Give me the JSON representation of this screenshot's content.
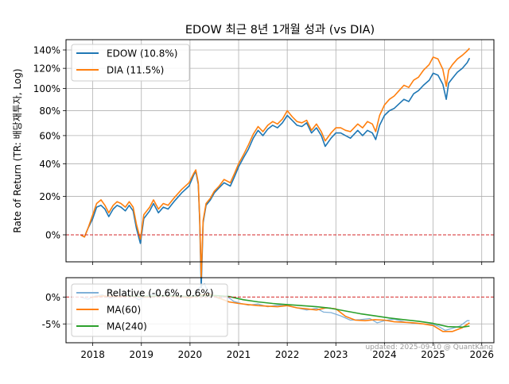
{
  "chart_data": [
    {
      "type": "line",
      "title": "EDOW 최근 8년 1개월 성과 (vs DIA)",
      "ylabel": "Rate of Return (TR: 배당재투자, Log)",
      "y_scale": "log(1+r)",
      "ylim": [
        -12,
        152
      ],
      "xlim": [
        2017.45,
        2026.25
      ],
      "grid": true,
      "legend_position": "top-left",
      "ytick_labels": [
        "0%",
        "20%",
        "40%",
        "60%",
        "80%",
        "100%",
        "120%",
        "140%"
      ],
      "ytick_values": [
        0,
        20,
        40,
        60,
        80,
        100,
        120,
        140
      ],
      "reference_line": {
        "y": 0,
        "color": "#d62728",
        "style": "dashed"
      },
      "series": [
        {
          "name": "EDOW (10.8%)",
          "color": "#1f77b4",
          "x": [
            2017.75,
            2017.83,
            2017.9,
            2018.0,
            2018.08,
            2018.17,
            2018.25,
            2018.33,
            2018.42,
            2018.5,
            2018.58,
            2018.67,
            2018.75,
            2018.83,
            2018.9,
            2018.98,
            2019.05,
            2019.17,
            2019.25,
            2019.35,
            2019.45,
            2019.55,
            2019.67,
            2019.83,
            2019.98,
            2020.08,
            2020.12,
            2020.17,
            2020.2,
            2020.23,
            2020.27,
            2020.33,
            2020.42,
            2020.5,
            2020.6,
            2020.7,
            2020.83,
            2020.92,
            2021.0,
            2021.1,
            2021.2,
            2021.3,
            2021.4,
            2021.5,
            2021.6,
            2021.7,
            2021.8,
            2021.9,
            2022.0,
            2022.1,
            2022.2,
            2022.3,
            2022.4,
            2022.5,
            2022.6,
            2022.7,
            2022.78,
            2022.9,
            2023.0,
            2023.1,
            2023.2,
            2023.3,
            2023.45,
            2023.55,
            2023.65,
            2023.75,
            2023.82,
            2023.9,
            2024.0,
            2024.1,
            2024.2,
            2024.3,
            2024.4,
            2024.5,
            2024.6,
            2024.7,
            2024.8,
            2024.92,
            2025.0,
            2025.1,
            2025.2,
            2025.27,
            2025.32,
            2025.4,
            2025.5,
            2025.6,
            2025.7,
            2025.75
          ],
          "values": [
            0.0,
            -1.0,
            3.0,
            8.0,
            14.0,
            15.0,
            13.0,
            9.0,
            13.0,
            15.0,
            14.0,
            12.0,
            15.0,
            12.0,
            3.0,
            -4.0,
            8.0,
            12.0,
            16.0,
            11.0,
            14.0,
            13.0,
            17.0,
            22.0,
            26.0,
            33.0,
            35.0,
            27.0,
            7.0,
            -22.0,
            6.0,
            15.0,
            18.0,
            22.0,
            25.0,
            28.0,
            26.0,
            32.0,
            38.0,
            44.0,
            50.0,
            58.0,
            64.0,
            60.0,
            65.0,
            68.0,
            66.0,
            70.0,
            76.0,
            72.0,
            68.0,
            67.0,
            70.0,
            62.0,
            66.0,
            60.0,
            52.0,
            58.0,
            62.0,
            62.0,
            60.0,
            58.0,
            64.0,
            60.0,
            64.0,
            62.0,
            57.0,
            68.0,
            76.0,
            80.0,
            82.0,
            86.0,
            90.0,
            88.0,
            95.0,
            98.0,
            103.0,
            108.0,
            115.0,
            113.0,
            104.0,
            90.0,
            105.0,
            110.0,
            116.0,
            120.0,
            126.0,
            131.0
          ]
        },
        {
          "name": "DIA (11.5%)",
          "color": "#ff7f0e",
          "x": [
            2017.75,
            2017.83,
            2017.9,
            2018.0,
            2018.08,
            2018.17,
            2018.25,
            2018.33,
            2018.42,
            2018.5,
            2018.58,
            2018.67,
            2018.75,
            2018.83,
            2018.9,
            2018.98,
            2019.05,
            2019.17,
            2019.25,
            2019.35,
            2019.45,
            2019.55,
            2019.67,
            2019.83,
            2019.98,
            2020.08,
            2020.12,
            2020.17,
            2020.2,
            2020.23,
            2020.27,
            2020.33,
            2020.42,
            2020.5,
            2020.6,
            2020.7,
            2020.83,
            2020.92,
            2021.0,
            2021.1,
            2021.2,
            2021.3,
            2021.4,
            2021.5,
            2021.6,
            2021.7,
            2021.8,
            2021.9,
            2022.0,
            2022.1,
            2022.2,
            2022.3,
            2022.4,
            2022.5,
            2022.6,
            2022.7,
            2022.78,
            2022.9,
            2023.0,
            2023.1,
            2023.2,
            2023.3,
            2023.45,
            2023.55,
            2023.65,
            2023.75,
            2023.82,
            2023.9,
            2024.0,
            2024.1,
            2024.2,
            2024.3,
            2024.4,
            2024.5,
            2024.6,
            2024.7,
            2024.8,
            2024.92,
            2025.0,
            2025.1,
            2025.2,
            2025.27,
            2025.32,
            2025.4,
            2025.5,
            2025.6,
            2025.7,
            2025.75
          ],
          "values": [
            0.0,
            -1.0,
            3.0,
            10.0,
            16.0,
            18.0,
            15.0,
            11.0,
            15.0,
            17.0,
            16.0,
            14.0,
            17.0,
            14.0,
            5.0,
            -2.0,
            10.0,
            14.0,
            18.0,
            13.0,
            16.0,
            15.0,
            19.0,
            24.0,
            28.0,
            34.0,
            36.0,
            28.0,
            8.0,
            -18.0,
            7.0,
            16.0,
            19.0,
            23.0,
            26.0,
            30.0,
            28.0,
            34.0,
            40.0,
            46.0,
            53.0,
            61.0,
            67.0,
            63.0,
            68.0,
            71.0,
            69.0,
            73.0,
            80.0,
            75.0,
            71.0,
            70.0,
            72.0,
            64.0,
            69.0,
            63.0,
            56.0,
            62.0,
            66.0,
            66.0,
            64.0,
            63.0,
            69.0,
            66.0,
            71.0,
            69.0,
            63.0,
            76.0,
            85.0,
            90.0,
            93.0,
            98.0,
            103.0,
            101.0,
            108.0,
            111.0,
            118.0,
            124.0,
            132.0,
            130.0,
            119.0,
            102.0,
            118.0,
            124.0,
            130.0,
            134.0,
            139.0,
            142.0
          ]
        }
      ]
    },
    {
      "type": "line",
      "ylim": [
        -8.5,
        3.6
      ],
      "xlim": [
        2017.45,
        2026.25
      ],
      "grid": true,
      "legend_position": "top-left",
      "ytick_labels": [
        "0%",
        "-5%"
      ],
      "ytick_values": [
        0,
        -5
      ],
      "xtick_labels": [
        "2018",
        "2019",
        "2020",
        "2021",
        "2022",
        "2023",
        "2024",
        "2025",
        "2026"
      ],
      "xtick_values": [
        2018,
        2019,
        2020,
        2021,
        2022,
        2023,
        2024,
        2025,
        2026
      ],
      "reference_line": {
        "y": 0,
        "color": "#d62728",
        "style": "dashed"
      },
      "series": [
        {
          "name": "Relative (-0.6%, 0.6%)",
          "color": "#7fb0d8",
          "x": [
            2017.75,
            2017.9,
            2018.05,
            2018.2,
            2018.35,
            2018.5,
            2018.65,
            2018.8,
            2018.95,
            2019.1,
            2019.25,
            2019.4,
            2019.55,
            2019.7,
            2019.85,
            2020.0,
            2020.1,
            2020.2,
            2020.3,
            2020.35,
            2020.45,
            2020.6,
            2020.75,
            2020.9,
            2021.05,
            2021.2,
            2021.4,
            2021.6,
            2021.8,
            2022.0,
            2022.2,
            2022.4,
            2022.6,
            2022.75,
            2022.9,
            2023.1,
            2023.3,
            2023.5,
            2023.7,
            2023.85,
            2024.0,
            2024.2,
            2024.4,
            2024.6,
            2024.8,
            2025.0,
            2025.1,
            2025.25,
            2025.4,
            2025.55,
            2025.7,
            2025.75
          ],
          "values": [
            0.0,
            -0.4,
            0.2,
            0.4,
            -0.2,
            0.1,
            0.5,
            0.3,
            -0.5,
            0.2,
            0.6,
            0.3,
            0.4,
            0.2,
            0.0,
            -0.2,
            0.5,
            1.8,
            2.5,
            1.2,
            0.3,
            -0.3,
            0.2,
            -0.8,
            -1.2,
            -1.5,
            -1.3,
            -1.8,
            -1.5,
            -1.6,
            -2.0,
            -2.4,
            -2.1,
            -2.8,
            -2.9,
            -3.5,
            -4.3,
            -4.2,
            -4.0,
            -4.8,
            -4.4,
            -4.1,
            -4.6,
            -4.9,
            -5.0,
            -5.1,
            -5.4,
            -6.2,
            -5.8,
            -5.4,
            -4.4,
            -4.4
          ]
        },
        {
          "name": "MA(60)",
          "color": "#ff7f0e",
          "x": [
            2017.95,
            2018.2,
            2018.5,
            2018.8,
            2019.1,
            2019.4,
            2019.7,
            2020.0,
            2020.2,
            2020.4,
            2020.6,
            2020.8,
            2021.0,
            2021.2,
            2021.4,
            2021.6,
            2021.8,
            2022.0,
            2022.2,
            2022.4,
            2022.6,
            2022.8,
            2023.0,
            2023.2,
            2023.4,
            2023.6,
            2023.8,
            2024.0,
            2024.2,
            2024.4,
            2024.6,
            2024.8,
            2025.0,
            2025.2,
            2025.4,
            2025.6,
            2025.75
          ],
          "values": [
            -0.1,
            0.2,
            0.1,
            0.2,
            0.0,
            0.3,
            0.1,
            -0.1,
            0.3,
            0.6,
            -0.2,
            -0.9,
            -1.2,
            -1.4,
            -1.6,
            -1.7,
            -1.8,
            -1.6,
            -2.0,
            -2.2,
            -2.4,
            -2.0,
            -2.2,
            -3.6,
            -4.3,
            -4.4,
            -4.2,
            -4.3,
            -4.6,
            -4.7,
            -4.8,
            -5.0,
            -5.3,
            -6.4,
            -6.4,
            -5.7,
            -4.8
          ]
        },
        {
          "name": "MA(240)",
          "color": "#2ca02c",
          "x": [
            2018.7,
            2019.0,
            2019.3,
            2019.6,
            2019.9,
            2020.2,
            2020.5,
            2020.8,
            2021.1,
            2021.4,
            2021.7,
            2022.0,
            2022.3,
            2022.6,
            2022.9,
            2023.2,
            2023.5,
            2023.8,
            2024.1,
            2024.4,
            2024.7,
            2025.0,
            2025.3,
            2025.6,
            2025.75
          ],
          "values": [
            0.2,
            0.15,
            0.2,
            0.25,
            0.15,
            0.2,
            0.3,
            0.1,
            -0.5,
            -0.9,
            -1.2,
            -1.4,
            -1.6,
            -1.8,
            -2.1,
            -2.6,
            -3.1,
            -3.5,
            -3.9,
            -4.2,
            -4.5,
            -4.9,
            -5.5,
            -5.6,
            -5.4
          ]
        }
      ]
    }
  ],
  "watermark": "updated: 2025-09-10 @ QuantKang"
}
